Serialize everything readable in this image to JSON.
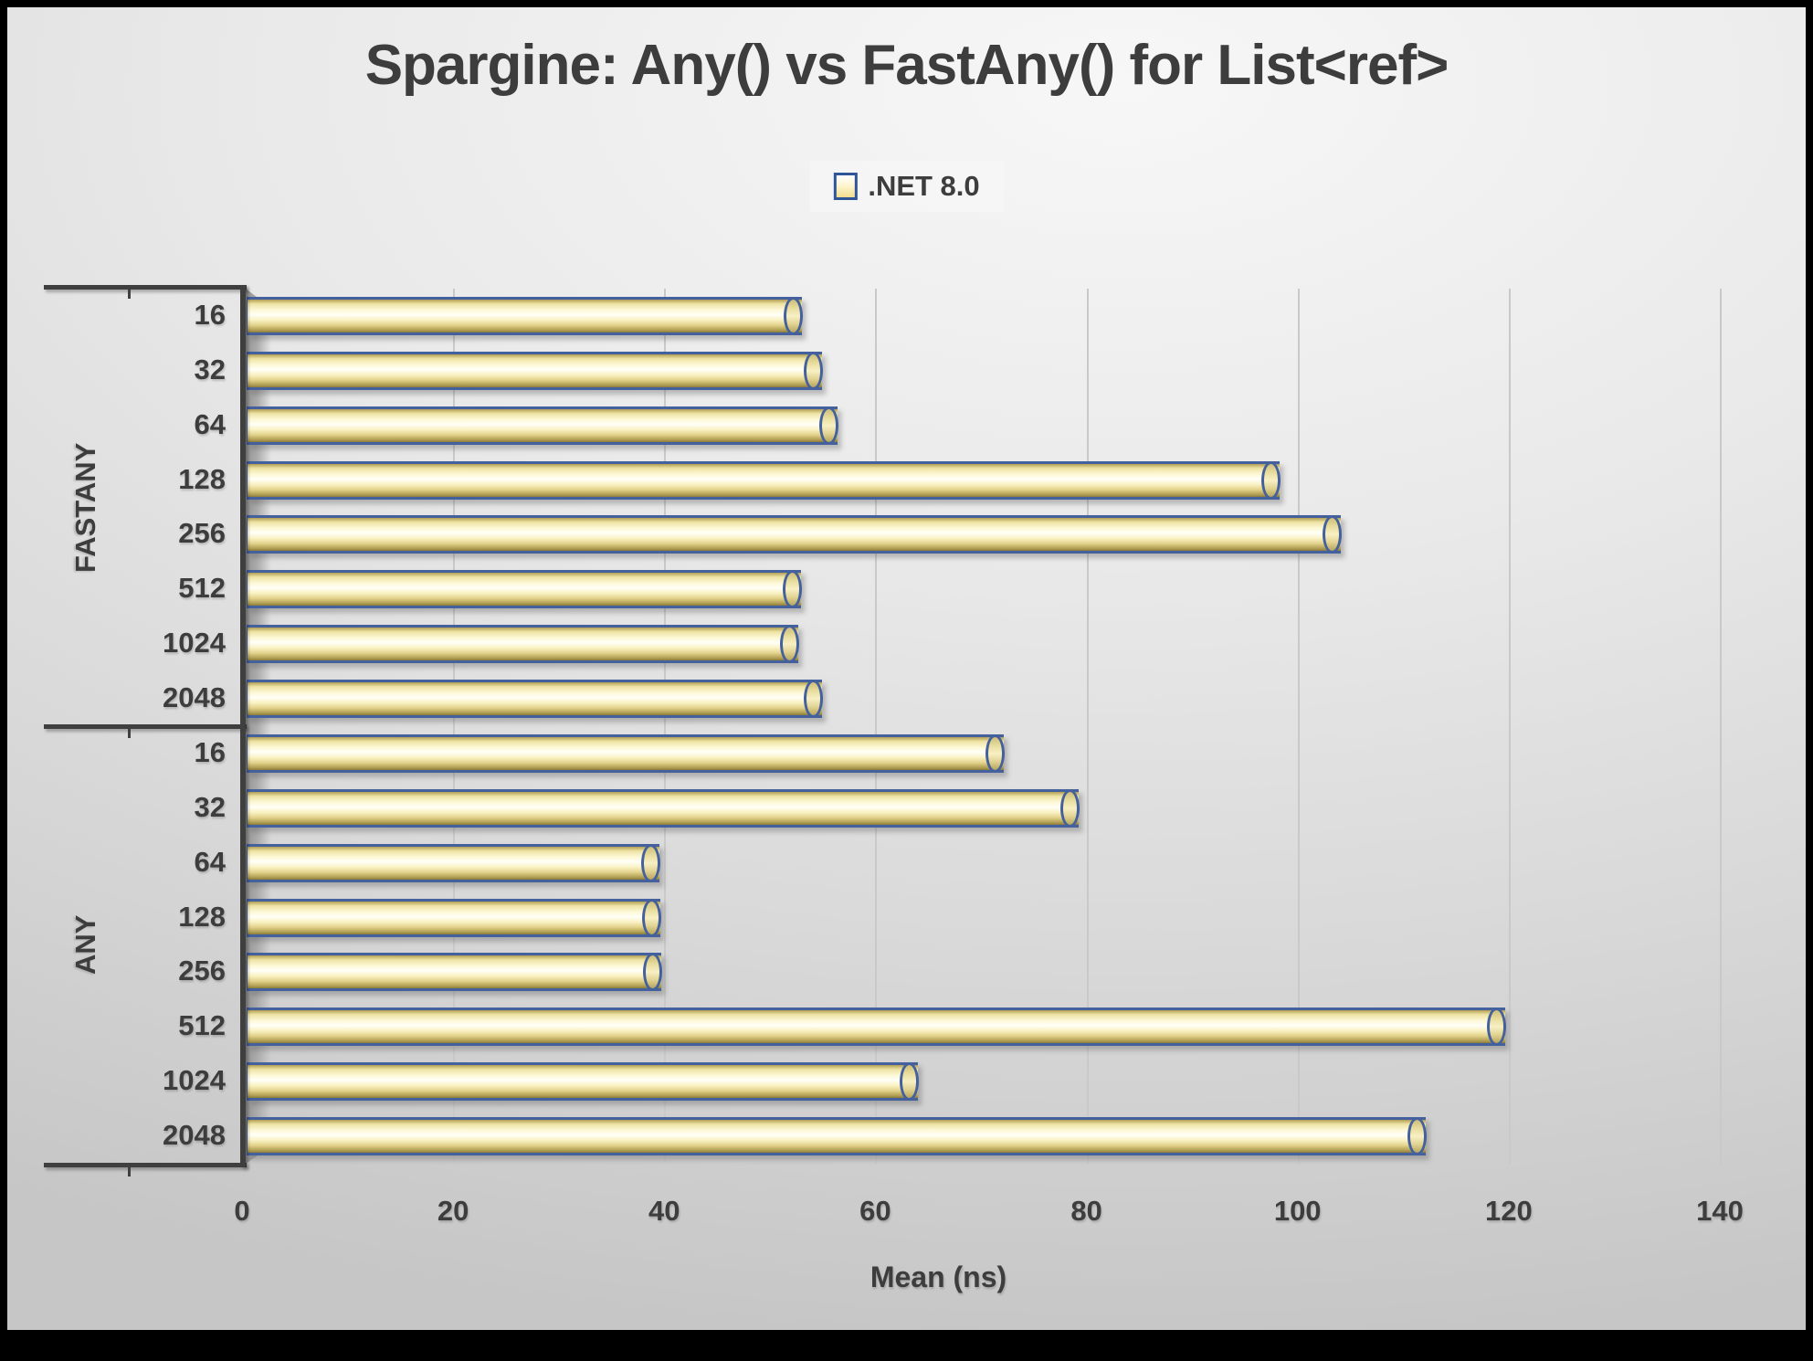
{
  "chart_data": {
    "type": "bar",
    "orientation": "horizontal",
    "title": "Spargine: Any() vs FastAny() for List<ref>",
    "legend": {
      "label": ".NET 8.0",
      "position": "top-center"
    },
    "xlabel": "Mean (ns)",
    "xlim": [
      0,
      140
    ],
    "xticks": [
      "0",
      "20",
      "40",
      "60",
      "80",
      "100",
      "120",
      "140"
    ],
    "grid": true,
    "groups": [
      {
        "name": "FASTANY",
        "categories": [
          "16",
          "32",
          "64",
          "128",
          "256",
          "512",
          "1024",
          "2048"
        ],
        "values": [
          52.6,
          54.5,
          56.0,
          97.9,
          103.7,
          52.5,
          52.3,
          54.5
        ]
      },
      {
        "name": "ANY",
        "categories": [
          "16",
          "32",
          "64",
          "128",
          "256",
          "512",
          "1024",
          "2048"
        ],
        "values": [
          71.7,
          78.8,
          39.1,
          39.2,
          39.3,
          119.2,
          63.6,
          111.7
        ]
      }
    ],
    "colors": {
      "bar_fill": "#f7efc0",
      "bar_highlight": "#ffffff",
      "bar_shade": "#a4934c",
      "bar_border": "#44619e",
      "text": "#3d3d3d",
      "gridline": "#c9c9c9",
      "axis_line": "#3f3f3f",
      "background": "#e2e2e2",
      "frame": "#000000"
    }
  }
}
